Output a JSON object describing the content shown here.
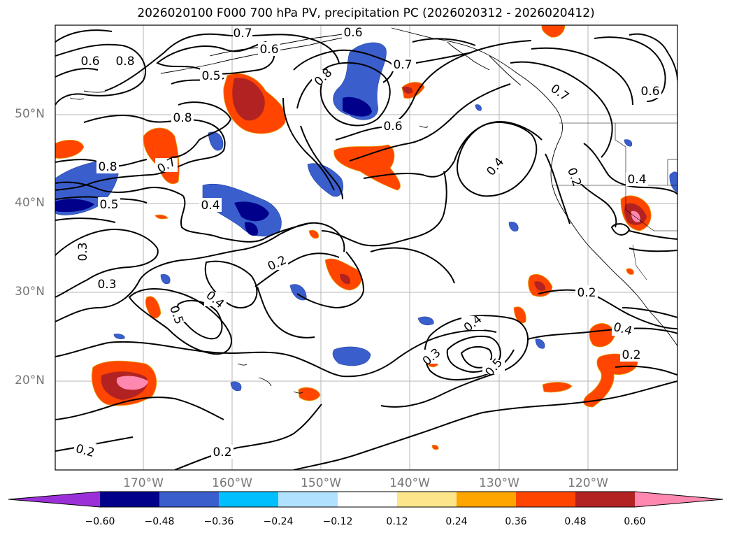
{
  "title": "2026020100 F000 700 hPa PV, precipitation PC (2026020312 - 2026020412)",
  "latitude_labels": [
    "50°N",
    "40°N",
    "30°N",
    "20°N"
  ],
  "longitude_labels": [
    "170°W",
    "160°W",
    "150°W",
    "140°W",
    "130°W",
    "120°W"
  ],
  "colorbar": {
    "labels": [
      "−0.60",
      "−0.48",
      "−0.36",
      "−0.24",
      "−0.12",
      "0.12",
      "0.24",
      "0.36",
      "0.48",
      "0.60"
    ],
    "colors": [
      "#9b30d9",
      "#00008b",
      "#3a5fcd",
      "#00bfff",
      "#b0e2ff",
      "#ffffff",
      "#fde68a",
      "#ffa500",
      "#ff4500",
      "#b22222",
      "#ff88b0"
    ]
  },
  "contour_labels": [
    "0.8",
    "0.8",
    "0.8",
    "0.8",
    "0.7",
    "0.7",
    "0.7",
    "0.7",
    "0.6",
    "0.6",
    "0.6",
    "0.6",
    "0.6",
    "0.5",
    "0.5",
    "0.5",
    "0.5",
    "0.4",
    "0.4",
    "0.4",
    "0.4",
    "0.4",
    "0.4",
    "0.3",
    "0.3",
    "0.3",
    "0.2",
    "0.2",
    "0.2",
    "0.2",
    "0.2",
    "0.2"
  ]
}
